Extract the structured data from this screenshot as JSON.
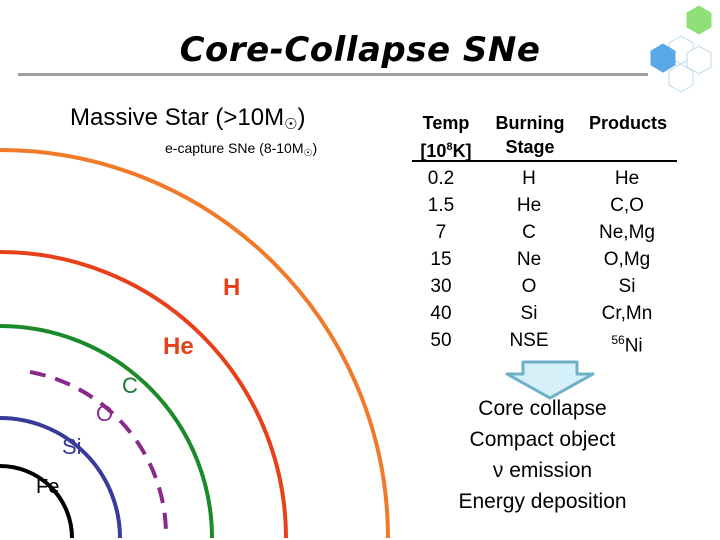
{
  "title": "Core-Collapse SNe",
  "star": {
    "massive_label_main": "Massive Star (>10M",
    "massive_label_end": ")",
    "ecapture_label_main": "e-capture SNe (8-10M",
    "ecapture_label_end": ")",
    "sun_symbol": "☉"
  },
  "shells": {
    "h": "H",
    "he": "He",
    "c": "C",
    "o": "O",
    "si": "Si",
    "fe": "Fe"
  },
  "table": {
    "headers": {
      "temp_line1": "Temp",
      "temp_line2_pre": "[10",
      "temp_line2_sup": "8",
      "temp_line2_post": "K]",
      "stage_line1": "Burning",
      "stage_line2": "Stage",
      "products": "Products"
    },
    "temps": [
      "0.2",
      "1.5",
      "7",
      "15",
      "30",
      "40",
      "50"
    ],
    "stages": [
      "H",
      "He",
      "C",
      "Ne",
      "O",
      "Si",
      "NSE"
    ],
    "products": [
      "He",
      "C,O",
      "Ne,Mg",
      "O,Mg",
      "Si",
      "Cr,Mn"
    ],
    "last_product_sup": "56",
    "last_product_base": "Ni"
  },
  "outcomes": [
    "Core collapse",
    "Compact object",
    "ν emission",
    "Energy deposition"
  ],
  "colors": {
    "h_shell": "#f07a2a",
    "he_shell": "#e8401a",
    "c_shell": "#1b8a2a",
    "o_shell": "#8a2a8a",
    "si_shell": "#3a3a9a",
    "fe_shell": "#000000",
    "hex_fill": "#8fe07a",
    "hex_blue": "#5aa8e8",
    "arrow_fill": "#d6f0fa",
    "arrow_stroke": "#6fb0c8"
  }
}
